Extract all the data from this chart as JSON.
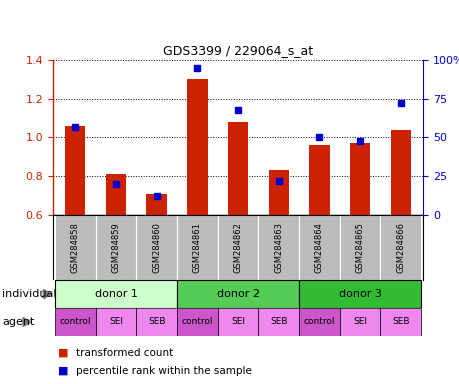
{
  "title": "GDS3399 / 229064_s_at",
  "samples": [
    "GSM284858",
    "GSM284859",
    "GSM284860",
    "GSM284861",
    "GSM284862",
    "GSM284863",
    "GSM284864",
    "GSM284865",
    "GSM284866"
  ],
  "transformed_count": [
    1.06,
    0.81,
    0.71,
    1.3,
    1.08,
    0.83,
    0.96,
    0.97,
    1.04
  ],
  "percentile_rank": [
    57,
    20,
    12,
    95,
    68,
    22,
    50,
    48,
    72
  ],
  "ylim": [
    0.6,
    1.4
  ],
  "yticks": [
    0.6,
    0.8,
    1.0,
    1.2,
    1.4
  ],
  "y2ticks": [
    0,
    25,
    50,
    75,
    100
  ],
  "bar_color": "#cc2200",
  "dot_color": "#0000cc",
  "bar_width": 0.5,
  "donors": [
    {
      "label": "donor 1",
      "start": 0,
      "end": 3,
      "color": "#ccffcc"
    },
    {
      "label": "donor 2",
      "start": 3,
      "end": 6,
      "color": "#55cc55"
    },
    {
      "label": "donor 3",
      "start": 6,
      "end": 9,
      "color": "#33bb33"
    }
  ],
  "agents": [
    "control",
    "SEI",
    "SEB",
    "control",
    "SEI",
    "SEB",
    "control",
    "SEI",
    "SEB"
  ],
  "agent_color_control": "#cc55cc",
  "agent_color_other": "#ee88ee",
  "sample_bg_color": "#bbbbbb",
  "legend_red_label": "transformed count",
  "legend_blue_label": "percentile rank within the sample",
  "left_label_individual": "individual",
  "left_label_agent": "agent"
}
